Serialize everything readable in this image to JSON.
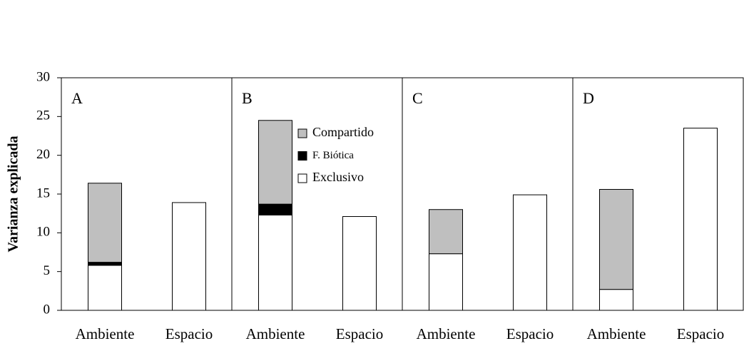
{
  "chart_data": {
    "type": "bar",
    "stacked": true,
    "ylabel": "Varianza explicada",
    "ylim": [
      0,
      30
    ],
    "yticks": [
      0,
      5,
      10,
      15,
      20,
      25,
      30
    ],
    "series": [
      {
        "name": "Exclusivo",
        "color": "#ffffff"
      },
      {
        "name": "F. Biótica",
        "color": "#000000"
      },
      {
        "name": "Compartido",
        "color": "#bfbfbf"
      }
    ],
    "panels": [
      {
        "title": "A",
        "categories": [
          "Ambiente",
          "Espacio"
        ],
        "values": [
          [
            5.8,
            13.9
          ],
          [
            0.4,
            null
          ],
          [
            10.2,
            null
          ]
        ]
      },
      {
        "title": "B",
        "categories": [
          "Ambiente",
          "Espacio"
        ],
        "values": [
          [
            12.3,
            12.1
          ],
          [
            1.4,
            null
          ],
          [
            10.8,
            null
          ]
        ]
      },
      {
        "title": "C",
        "categories": [
          "Ambiente",
          "Espacio"
        ],
        "values": [
          [
            7.3,
            14.9
          ],
          [
            null,
            null
          ],
          [
            5.7,
            null
          ]
        ]
      },
      {
        "title": "D",
        "categories": [
          "Ambiente",
          "Espacio"
        ],
        "values": [
          [
            2.7,
            23.5
          ],
          [
            null,
            null
          ],
          [
            12.9,
            null
          ]
        ]
      }
    ]
  }
}
